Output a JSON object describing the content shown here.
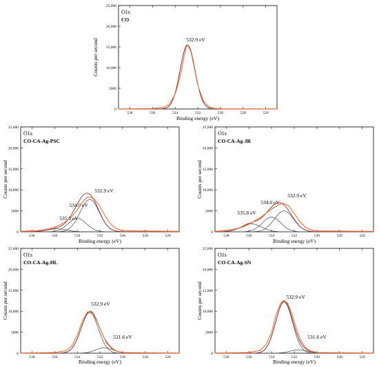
{
  "chart_data": [
    {
      "type": "line",
      "core_level": "O1s",
      "sample": "CO",
      "xlabel": "Binding energy (eV)",
      "ylabel": "Counts per second",
      "xlim": [
        539,
        525
      ],
      "ylim": [
        0,
        25000
      ],
      "x_ticks": [
        "538",
        "536",
        "534",
        "532",
        "530",
        "528",
        "526"
      ],
      "y_ticks": [
        "0",
        "5000",
        "10,000",
        "15,000",
        "20,000",
        "25,000"
      ],
      "grid": false,
      "series": [
        {
          "role": "measured",
          "color": "#e8743b",
          "x": [
            539,
            536,
            535,
            534.5,
            534,
            533.7,
            533.4,
            533.2,
            533.0,
            532.9,
            532.8,
            532.6,
            532.4,
            532.0,
            531.5,
            531.0,
            530.5,
            529.5,
            525
          ],
          "y": [
            30,
            100,
            400,
            1200,
            3600,
            6200,
            9800,
            12800,
            15000,
            15500,
            15100,
            13800,
            11200,
            5800,
            1900,
            500,
            150,
            40,
            30
          ]
        },
        {
          "role": "fit-envelope",
          "color": "#8b1a1a",
          "x": [
            539,
            525
          ],
          "y": [
            0,
            0
          ]
        },
        {
          "role": "component",
          "color": "#444444",
          "center": 532.9,
          "height": 15500,
          "fwhm": 1.55
        }
      ],
      "annotations": [
        "532.9 eV"
      ]
    },
    {
      "type": "line",
      "core_level": "O1s",
      "sample": "CO-CA-Ag-PSC",
      "xlabel": "Binding energy (eV)",
      "ylabel": "Counts per second",
      "xlim": [
        539,
        525
      ],
      "ylim": [
        0,
        25000
      ],
      "x_ticks": [
        "538",
        "536",
        "534",
        "532",
        "530",
        "528",
        "526"
      ],
      "y_ticks": [
        "0",
        "5000",
        "10,000",
        "15,000",
        "20,000",
        "25,000"
      ],
      "grid": false,
      "series": [
        {
          "role": "measured",
          "color": "#e8743b",
          "x": [
            539,
            537.5,
            536.5,
            536,
            535.5,
            535,
            534.5,
            534,
            533.5,
            533.2,
            532.9,
            532.5,
            532,
            531.5,
            531,
            530.5,
            530,
            525
          ],
          "y": [
            100,
            300,
            700,
            1100,
            1700,
            2500,
            3600,
            5200,
            7200,
            8100,
            8300,
            7800,
            6000,
            3600,
            1700,
            700,
            250,
            100
          ]
        },
        {
          "role": "fit-envelope",
          "color": "#8b1a1a",
          "x": [
            539,
            525
          ],
          "y": [
            0,
            0
          ]
        },
        {
          "role": "component",
          "color": "#444444",
          "center": 532.9,
          "height": 7700,
          "fwhm": 2.0
        },
        {
          "role": "component",
          "color": "#444444",
          "center": 534.0,
          "height": 3200,
          "fwhm": 1.9
        },
        {
          "role": "component",
          "color": "#444444",
          "center": 535.8,
          "height": 700,
          "fwhm": 2.0
        }
      ],
      "annotations": [
        "532.9 eV",
        "534.0 eV",
        "535.8 eV"
      ]
    },
    {
      "type": "line",
      "core_level": "O1s",
      "sample": "CO-CA-Ag-JR",
      "xlabel": "Binding energy (eV)",
      "ylabel": "Counts per second",
      "xlim": [
        539,
        525
      ],
      "ylim": [
        0,
        25000
      ],
      "x_ticks": [
        "538",
        "536",
        "534",
        "532",
        "530",
        "528",
        "526"
      ],
      "y_ticks": [
        "0",
        "5000",
        "10,000",
        "15,000",
        "20,000",
        "25,000"
      ],
      "grid": false,
      "series": [
        {
          "role": "measured",
          "color": "#e8743b",
          "x": [
            539,
            537.5,
            536.5,
            536,
            535.5,
            535,
            534.5,
            534,
            533.5,
            533,
            532.5,
            532,
            531.5,
            531,
            530.5,
            530,
            525
          ],
          "y": [
            100,
            500,
            1200,
            1800,
            2600,
            3400,
            4400,
            5400,
            6300,
            6800,
            6200,
            4400,
            2400,
            1100,
            450,
            200,
            100
          ]
        },
        {
          "role": "fit-envelope",
          "color": "#8b1a1a",
          "x": [
            539,
            525
          ],
          "y": [
            0,
            0
          ]
        },
        {
          "role": "component",
          "color": "#444444",
          "center": 532.9,
          "height": 5000,
          "fwhm": 2.0
        },
        {
          "role": "component",
          "color": "#444444",
          "center": 534.0,
          "height": 3500,
          "fwhm": 1.9
        },
        {
          "role": "component",
          "color": "#444444",
          "center": 535.8,
          "height": 1900,
          "fwhm": 2.1
        }
      ],
      "annotations": [
        "532.9 eV",
        "534.0 eV",
        "535.8 eV"
      ]
    },
    {
      "type": "line",
      "core_level": "O1s",
      "sample": "CO-CA-Ag-HL",
      "xlabel": "Binding energy (eV)",
      "ylabel": "Counts per second",
      "xlim": [
        539,
        525
      ],
      "ylim": [
        0,
        25000
      ],
      "x_ticks": [
        "538",
        "536",
        "534",
        "532",
        "530",
        "528",
        "526"
      ],
      "y_ticks": [
        "0",
        "5000",
        "10,000",
        "15,000",
        "20,000",
        "25,000"
      ],
      "grid": false,
      "series": [
        {
          "role": "measured",
          "color": "#e8743b",
          "x": [
            539,
            536,
            535,
            534.5,
            534,
            533.5,
            533.1,
            532.9,
            532.6,
            532.2,
            531.8,
            531.4,
            531,
            530.5,
            530,
            525
          ],
          "y": [
            50,
            150,
            600,
            1700,
            4300,
            8000,
            9800,
            10000,
            9400,
            7300,
            4600,
            2400,
            1200,
            450,
            150,
            50
          ]
        },
        {
          "role": "fit-envelope",
          "color": "#8b1a1a",
          "x": [
            539,
            525
          ],
          "y": [
            0,
            0
          ]
        },
        {
          "role": "component",
          "color": "#444444",
          "center": 532.9,
          "height": 9700,
          "fwhm": 1.8
        },
        {
          "role": "component",
          "color": "#444444",
          "center": 531.6,
          "height": 1300,
          "fwhm": 1.8
        }
      ],
      "annotations": [
        "532.9 eV",
        "531.6 eV"
      ]
    },
    {
      "type": "line",
      "core_level": "O1s",
      "sample": "CO-CA-Ag-SN",
      "xlabel": "Binding energy (eV)",
      "ylabel": "Counts per second",
      "xlim": [
        539,
        525
      ],
      "ylim": [
        0,
        25000
      ],
      "x_ticks": [
        "538",
        "536",
        "534",
        "532",
        "530",
        "528",
        "526"
      ],
      "y_ticks": [
        "0",
        "5000",
        "10,000",
        "15,000",
        "20,000",
        "25,000"
      ],
      "grid": false,
      "series": [
        {
          "role": "measured",
          "color": "#e8743b",
          "x": [
            539,
            536,
            535,
            534.5,
            534,
            533.6,
            533.2,
            532.9,
            532.6,
            532.2,
            531.8,
            531.4,
            531,
            530.5,
            530,
            525
          ],
          "y": [
            50,
            150,
            700,
            2000,
            5000,
            9200,
            12000,
            12600,
            12000,
            9400,
            5800,
            2900,
            1300,
            500,
            150,
            50
          ]
        },
        {
          "role": "fit-envelope",
          "color": "#8b1a1a",
          "x": [
            539,
            525
          ],
          "y": [
            0,
            0
          ]
        },
        {
          "role": "component",
          "color": "#444444",
          "center": 532.9,
          "height": 12200,
          "fwhm": 1.75
        },
        {
          "role": "component",
          "color": "#444444",
          "center": 531.6,
          "height": 800,
          "fwhm": 1.8
        }
      ],
      "annotations": [
        "532.9 eV",
        "531.6 eV"
      ]
    }
  ]
}
